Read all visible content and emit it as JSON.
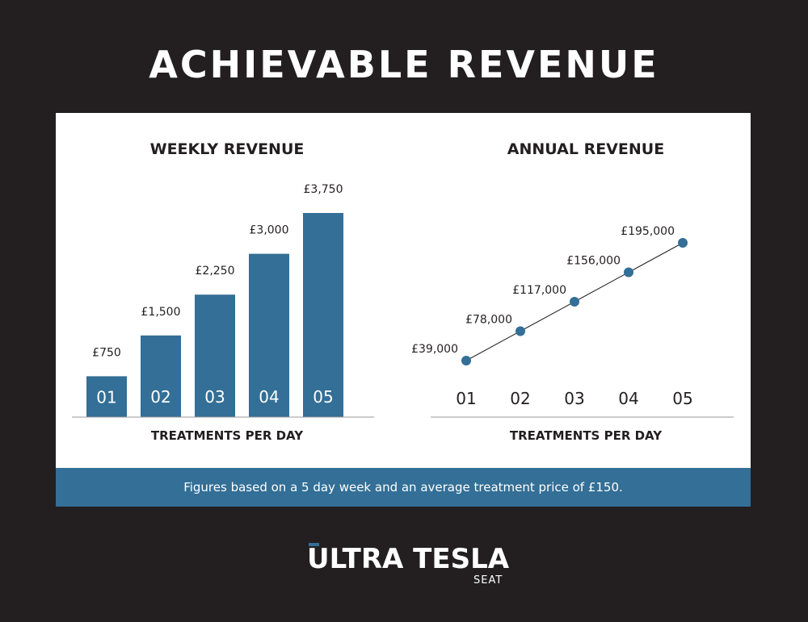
{
  "page": {
    "title": "ACHIEVABLE REVENUE",
    "footnote": "Figures based on a 5 day week and an average treatment price of £150.",
    "brand": {
      "name": "ULTRA TESLA",
      "sub": "SEAT"
    }
  },
  "colors": {
    "background": "#231f20",
    "panel": "#ffffff",
    "accent": "#336f96",
    "text_dark": "#231f20",
    "axis": "#9a9a9a"
  },
  "chart_data": [
    {
      "type": "bar",
      "title": "WEEKLY REVENUE",
      "xlabel": "TREATMENTS PER DAY",
      "ylabel": "",
      "categories": [
        "01",
        "02",
        "03",
        "04",
        "05"
      ],
      "values": [
        750,
        1500,
        2250,
        3000,
        3750
      ],
      "value_labels": [
        "£750",
        "£1,500",
        "£2,250",
        "£3,000",
        "£3,750"
      ],
      "ylim": [
        0,
        3750
      ],
      "grid": false
    },
    {
      "type": "line",
      "title": "ANNUAL REVENUE",
      "xlabel": "TREATMENTS PER DAY",
      "ylabel": "",
      "categories": [
        "01",
        "02",
        "03",
        "04",
        "05"
      ],
      "values": [
        39000,
        78000,
        117000,
        156000,
        195000
      ],
      "value_labels": [
        "£39,000",
        "£78,000",
        "£117,000",
        "£156,000",
        "£195,000"
      ],
      "ylim": [
        39000,
        195000
      ],
      "grid": false
    }
  ]
}
